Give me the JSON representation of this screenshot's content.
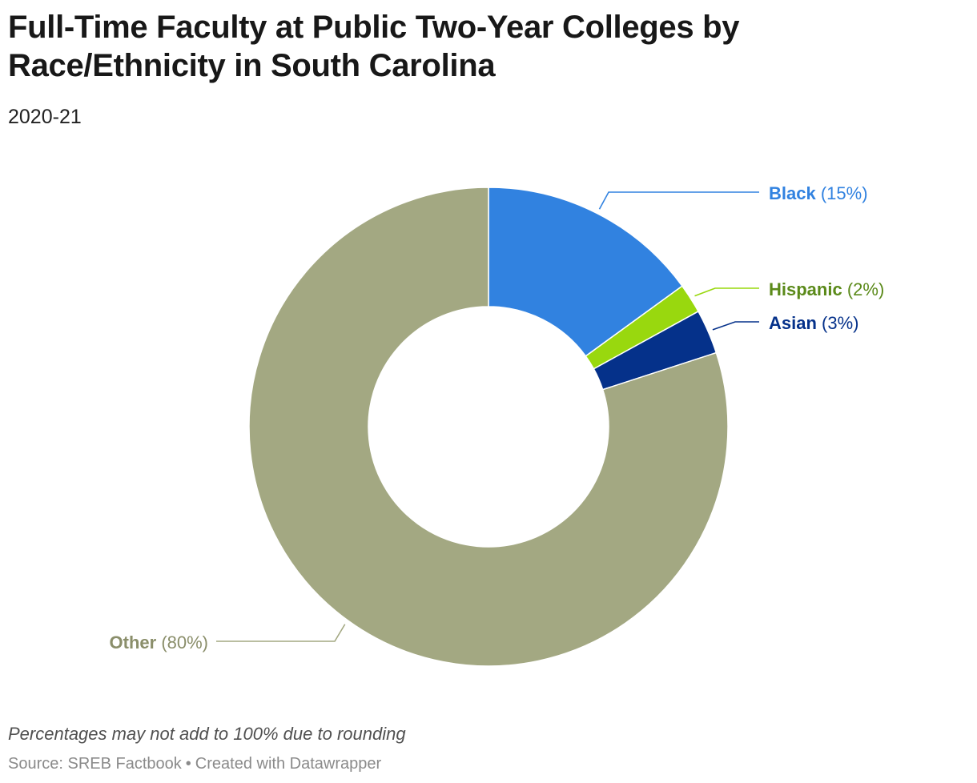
{
  "title": "Full-Time Faculty at Public Two-Year Colleges by Race/Ethnicity in South Carolina",
  "subtitle": "2020-21",
  "footnote": "Percentages may not add to 100% due to rounding",
  "source": {
    "text": "Source: SREB Factbook",
    "separator": "•",
    "credit": "Created with Datawrapper"
  },
  "chart_data": {
    "type": "pie",
    "variant": "donut",
    "title": "Full-Time Faculty at Public Two-Year Colleges by Race/Ethnicity in South Carolina",
    "subtitle": "2020-21",
    "slices": [
      {
        "label": "Black",
        "value": 15,
        "value_label": "(15%)",
        "color": "#3182e0",
        "label_color": "#3182e0"
      },
      {
        "label": "Hispanic",
        "value": 2,
        "value_label": "(2%)",
        "color": "#99d80e",
        "label_color": "#5b8a1a"
      },
      {
        "label": "Asian",
        "value": 3,
        "value_label": "(3%)",
        "color": "#05318a",
        "label_color": "#05318a"
      },
      {
        "label": "Other",
        "value": 80,
        "value_label": "(80%)",
        "color": "#a3a882",
        "label_color": "#8a8e6a"
      }
    ]
  }
}
